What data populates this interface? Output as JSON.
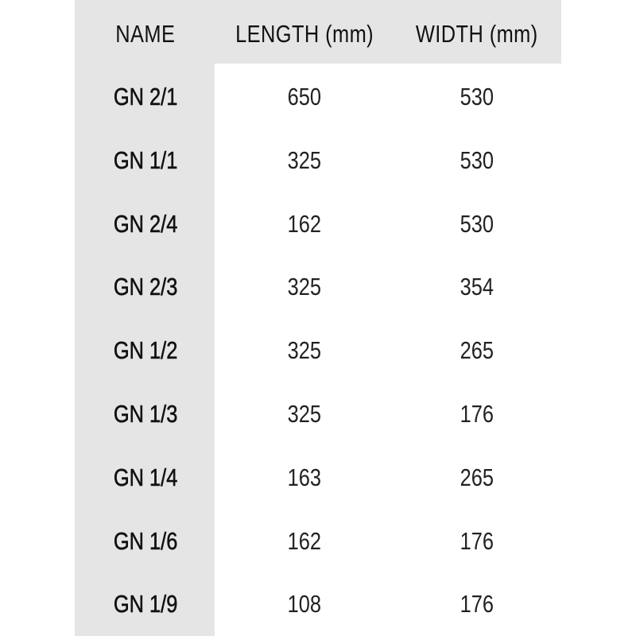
{
  "table": {
    "headers": [
      "NAME",
      "LENGTH (mm)",
      "WIDTH (mm)"
    ],
    "rows": [
      {
        "name": "GN 2/1",
        "length": "650",
        "width": "530"
      },
      {
        "name": "GN 1/1",
        "length": "325",
        "width": "530"
      },
      {
        "name": "GN 2/4",
        "length": "162",
        "width": "530"
      },
      {
        "name": "GN 2/3",
        "length": "325",
        "width": "354"
      },
      {
        "name": "GN 1/2",
        "length": "325",
        "width": "265"
      },
      {
        "name": "GN 1/3",
        "length": "325",
        "width": "176"
      },
      {
        "name": "GN 1/4",
        "length": "163",
        "width": "265"
      },
      {
        "name": "GN 1/6",
        "length": "162",
        "width": "176"
      },
      {
        "name": "GN 1/9",
        "length": "108",
        "width": "176"
      }
    ]
  },
  "colors": {
    "header_background": "#e6e5e5",
    "body_background": "#ffffff",
    "text": "#111111"
  }
}
